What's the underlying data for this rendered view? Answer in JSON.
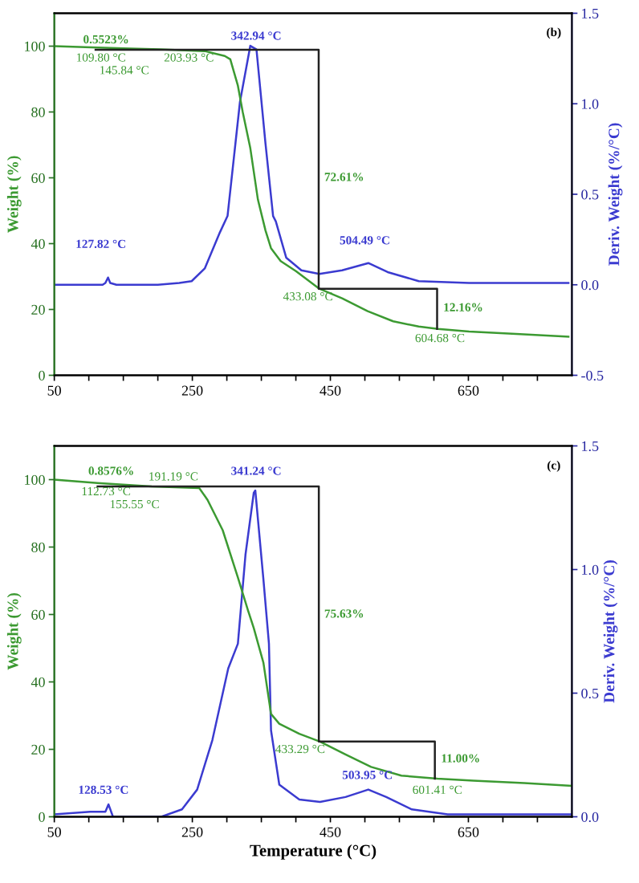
{
  "chart_data": [
    {
      "type": "line",
      "ylabel": "Weight (%)",
      "y2label": "Deriv. Weight (%/°C)",
      "xlim": [
        50,
        800
      ],
      "xticks": [
        50,
        {
          "value": 100,
          "label": null
        },
        {
          "value": 150,
          "label": null
        },
        {
          "value": 200,
          "label": null
        },
        250,
        {
          "value": 300,
          "label": null
        },
        {
          "value": 350,
          "label": null
        },
        {
          "value": 400,
          "label": null
        },
        450,
        {
          "value": 500,
          "label": null
        },
        {
          "value": 550,
          "label": null
        },
        {
          "value": 600,
          "label": null
        },
        650,
        {
          "value": 700,
          "label": null
        },
        {
          "value": 750,
          "label": null
        }
      ],
      "ylim": [
        0,
        110
      ],
      "yticks": [
        0,
        20,
        40,
        60,
        80,
        100
      ],
      "y2lim": [
        -0.5,
        1.5
      ],
      "y2ticks": [
        {
          "value": -0.5,
          "label": "-0.5"
        },
        {
          "value": 0,
          "label": "0.0"
        },
        {
          "value": 0.5,
          "label": "0.5"
        },
        {
          "value": 1,
          "label": "1.0"
        },
        {
          "value": 1.5,
          "label": "1.5"
        }
      ],
      "grid": false,
      "series": [
        {
          "color": "#3c9a32",
          "x": [
            50,
            150,
            203.5,
            268,
            297,
            305,
            316,
            323,
            334,
            345,
            356,
            364,
            378,
            400.5,
            434,
            467,
            504,
            541,
            578,
            606,
            651,
            725,
            795
          ],
          "values": [
            100,
            99.3,
            99,
            98.5,
            97,
            96,
            88,
            80,
            69,
            53.4,
            44,
            38.6,
            34.7,
            31.6,
            26.3,
            23.4,
            19.5,
            16.4,
            14.8,
            14.1,
            13.3,
            12.5,
            11.7
          ]
        },
        {
          "axis": "y2",
          "color": "#3b3bd0",
          "x": [
            50,
            120,
            124,
            127.82,
            131,
            140,
            200,
            231,
            249,
            268,
            290,
            301,
            319,
            334,
            342.94,
            356,
            367,
            371,
            386,
            408,
            434,
            467,
            505,
            533,
            578,
            651,
            795
          ],
          "values": [
            0,
            0,
            0.01,
            0.04,
            0.01,
            0,
            0,
            0.01,
            0.02,
            0.09,
            0.29,
            0.38,
            1.01,
            1.32,
            1.3,
            0.78,
            0.38,
            0.35,
            0.15,
            0.08,
            0.06,
            0.08,
            0.12,
            0.07,
            0.02,
            0.01,
            0.01
          ]
        },
        {
          "color": "#222222",
          "x": [
            109.8,
            433.08,
            433.08,
            604.68,
            604.68
          ],
          "values": [
            98.9,
            98.9,
            26.3,
            26.3,
            14.1
          ]
        }
      ],
      "annotations": [
        "0.5523%",
        "109.80 °C",
        "145.84 °C",
        "203.93 °C",
        "342.94 °C",
        "72.61%",
        "127.82 °C",
        "504.49 °C",
        "433.08 °C",
        "12.16%",
        "604.68 °C",
        "(b)"
      ]
    },
    {
      "type": "line",
      "xlabel": "Temperature (°C)",
      "ylabel": "Weight (%)",
      "y2label": "Deriv. Weight (%/°C)",
      "xlim": [
        50,
        800
      ],
      "xticks": [
        50,
        {
          "value": 100,
          "label": null
        },
        {
          "value": 150,
          "label": null
        },
        {
          "value": 200,
          "label": null
        },
        250,
        {
          "value": 300,
          "label": null
        },
        {
          "value": 350,
          "label": null
        },
        {
          "value": 400,
          "label": null
        },
        450,
        {
          "value": 500,
          "label": null
        },
        {
          "value": 550,
          "label": null
        },
        {
          "value": 600,
          "label": null
        },
        650,
        {
          "value": 700,
          "label": null
        },
        {
          "value": 750,
          "label": null
        }
      ],
      "ylim": [
        0,
        110
      ],
      "yticks": [
        0,
        20,
        40,
        60,
        80,
        100
      ],
      "y2lim": [
        0,
        1.5
      ],
      "y2ticks": [
        {
          "value": 0,
          "label": "0.0"
        },
        {
          "value": 0.5,
          "label": "0.5"
        },
        {
          "value": 1,
          "label": "1.0"
        },
        {
          "value": 1.5,
          "label": "1.5"
        }
      ],
      "grid": false,
      "series": [
        {
          "color": "#3c9a32",
          "x": [
            50,
            112.73,
            191,
            260,
            272,
            294,
            316,
            331,
            339,
            353,
            364,
            376,
            405,
            435,
            472,
            509,
            553,
            605,
            657,
            731,
            799
          ],
          "values": [
            100,
            99,
            98,
            97.5,
            94,
            85,
            71,
            61,
            56,
            45.7,
            30.5,
            27.6,
            24.6,
            22.3,
            18.5,
            14.8,
            12.2,
            11.3,
            10.7,
            10,
            9.2
          ]
        },
        {
          "axis": "y2",
          "color": "#3b3bd0",
          "x": [
            50,
            102,
            124,
            128.53,
            135,
            205,
            235,
            257,
            279,
            302,
            316,
            327,
            339,
            341.24,
            353,
            361,
            364,
            376,
            405,
            435,
            472,
            505,
            531,
            568,
            620,
            799
          ],
          "values": [
            0.01,
            0.02,
            0.02,
            0.05,
            0,
            0,
            0.03,
            0.11,
            0.31,
            0.6,
            0.7,
            1.06,
            1.31,
            1.32,
            0.96,
            0.7,
            0.35,
            0.13,
            0.07,
            0.06,
            0.08,
            0.11,
            0.08,
            0.03,
            0.01,
            0.01
          ]
        },
        {
          "color": "#222222",
          "x": [
            112.73,
            433.29,
            433.29,
            601.41,
            601.41
          ],
          "values": [
            98,
            98,
            22.3,
            22.3,
            11.3
          ]
        }
      ],
      "annotations": [
        "0.8576%",
        "112.73 °C",
        "155.55 °C",
        "191.19 °C",
        "341.24 °C",
        "75.63%",
        "128.53 °C",
        "503.95 °C",
        "433.29 °C",
        "11.00%",
        "601.41 °C",
        "(c)"
      ]
    }
  ]
}
